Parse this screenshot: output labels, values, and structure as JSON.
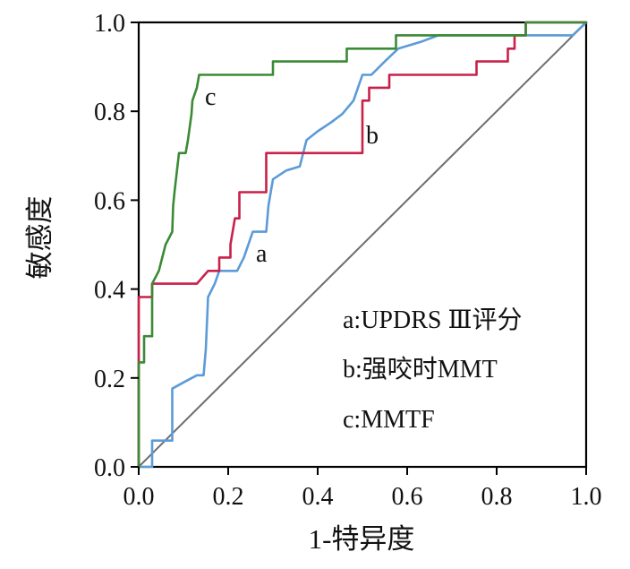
{
  "chart_data": {
    "type": "line",
    "xlabel": "1-特异度",
    "ylabel": "敏感度",
    "xlim": [
      0,
      1
    ],
    "ylim": [
      0,
      1
    ],
    "xticks": [
      "0.0",
      "0.2",
      "0.4",
      "0.6",
      "0.8",
      "1.0"
    ],
    "yticks": [
      "0.0",
      "0.2",
      "0.4",
      "0.6",
      "0.8",
      "1.0"
    ],
    "grid": false,
    "legend_placement": "right",
    "series": [
      {
        "name": "a",
        "legend_label": "a:UPDRS Ⅲ评分",
        "color": "#5b9bd8",
        "x": [
          0,
          0.03,
          0.03,
          0.075,
          0.075,
          0.1,
          0.13,
          0.145,
          0.15,
          0.155,
          0.17,
          0.18,
          0.22,
          0.235,
          0.255,
          0.285,
          0.29,
          0.3,
          0.33,
          0.36,
          0.375,
          0.4,
          0.43,
          0.455,
          0.48,
          0.5,
          0.52,
          0.55,
          0.58,
          0.63,
          0.67,
          0.97,
          1.0
        ],
        "y": [
          0,
          0,
          0.059,
          0.059,
          0.176,
          0.19,
          0.206,
          0.206,
          0.265,
          0.382,
          0.412,
          0.441,
          0.441,
          0.471,
          0.529,
          0.529,
          0.588,
          0.647,
          0.667,
          0.676,
          0.735,
          0.755,
          0.775,
          0.794,
          0.824,
          0.882,
          0.882,
          0.912,
          0.941,
          0.956,
          0.971,
          0.971,
          1.0
        ]
      },
      {
        "name": "b",
        "legend_label": "b:强咬时MMT",
        "color": "#c8214a",
        "x": [
          0,
          0,
          0.03,
          0.03,
          0.13,
          0.155,
          0.18,
          0.18,
          0.205,
          0.205,
          0.215,
          0.225,
          0.225,
          0.285,
          0.285,
          0.5,
          0.5,
          0.515,
          0.515,
          0.56,
          0.56,
          0.755,
          0.755,
          0.825,
          0.825,
          0.84,
          0.84,
          0.865,
          0.865,
          1.0
        ],
        "y": [
          0,
          0.382,
          0.382,
          0.412,
          0.412,
          0.441,
          0.441,
          0.471,
          0.471,
          0.5,
          0.559,
          0.559,
          0.618,
          0.618,
          0.706,
          0.706,
          0.824,
          0.824,
          0.853,
          0.853,
          0.882,
          0.882,
          0.912,
          0.912,
          0.941,
          0.941,
          0.971,
          0.971,
          1.0,
          1.0
        ]
      },
      {
        "name": "c",
        "legend_label": "c:MMTF",
        "color": "#3b8a35",
        "x": [
          0,
          0,
          0.012,
          0.012,
          0.03,
          0.03,
          0.045,
          0.06,
          0.075,
          0.077,
          0.08,
          0.09,
          0.105,
          0.11,
          0.118,
          0.12,
          0.13,
          0.135,
          0.3,
          0.3,
          0.465,
          0.465,
          0.575,
          0.575,
          0.865,
          0.865,
          1.0
        ],
        "y": [
          0,
          0.235,
          0.235,
          0.294,
          0.294,
          0.412,
          0.441,
          0.5,
          0.529,
          0.588,
          0.618,
          0.706,
          0.706,
          0.735,
          0.794,
          0.824,
          0.853,
          0.882,
          0.882,
          0.912,
          0.912,
          0.941,
          0.941,
          0.971,
          0.971,
          1.0,
          1.0
        ]
      }
    ],
    "reference_line": {
      "color": "#6e6e6e",
      "x": [
        0,
        1
      ],
      "y": [
        0,
        1
      ]
    }
  }
}
